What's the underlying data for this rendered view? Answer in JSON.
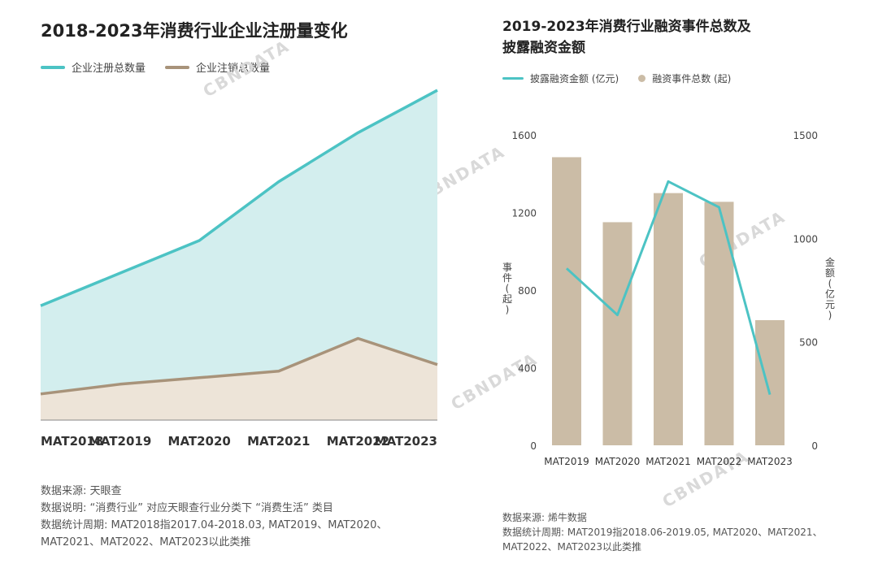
{
  "left_chart": {
    "title": "2018-2023年消费行业企业注册量变化",
    "legend": [
      {
        "name": "企业注册总数量",
        "color": "#4cc3c4"
      },
      {
        "name": "企业注销总数量",
        "color": "#a8937a"
      }
    ],
    "notes": [
      "数据来源: 天眼查",
      "数据说明: “消费行业” 对应天眼查行业分类下 “消费生活” 类目",
      "数据统计周期: MAT2018指2017.04-2018.03, MAT2019、MAT2020、",
      "MAT2021、MAT2022、MAT2023以此类推"
    ]
  },
  "right_chart": {
    "title_line1": "2019-2023年消费行业融资事件总数及",
    "title_line2": "披露融资金额",
    "legend": [
      {
        "name": "披露融资金额 (亿元)",
        "color": "#4cc3c4"
      },
      {
        "name": "融资事件总数 (起)",
        "color": "#cbbca6"
      }
    ],
    "left_axis_label": "事件 (起)",
    "right_axis_label": "金额 (亿元)",
    "notes": [
      "数据来源: 烯牛数据",
      "数据统计周期: MAT2019指2018.06-2019.05, MAT2020、MAT2021、",
      "MAT2022、MAT2023以此类推"
    ]
  },
  "watermark": "CBNDATA",
  "chart_data": [
    {
      "type": "area",
      "title": "2018-2023年消费行业企业注册量变化",
      "categories": [
        "MAT2018",
        "MAT2019",
        "MAT2020",
        "MAT2021",
        "MAT2022",
        "MAT2023"
      ],
      "series": [
        {
          "name": "企业注册总数量",
          "values": [
            35,
            45,
            55,
            73,
            88,
            101
          ]
        },
        {
          "name": "企业注销总数量",
          "values": [
            8,
            11,
            13,
            15,
            25,
            17
          ]
        }
      ],
      "ylim": [
        0,
        105
      ],
      "grid": false
    },
    {
      "type": "bar",
      "title": "2019-2023年消费行业融资事件总数及披露融资金额",
      "categories": [
        "MAT2019",
        "MAT2020",
        "MAT2021",
        "MAT2022",
        "MAT2023"
      ],
      "series": [
        {
          "name": "融资事件总数 (起)",
          "type": "bar",
          "axis": "left",
          "values": [
            1485,
            1150,
            1300,
            1255,
            645
          ]
        },
        {
          "name": "披露融资金额 (亿元)",
          "type": "line",
          "axis": "right",
          "values": [
            855,
            630,
            1275,
            1150,
            245
          ]
        }
      ],
      "y_left": {
        "ylim": [
          0,
          1600
        ],
        "ticks": [
          "0",
          "400",
          "800",
          "1200",
          "1600"
        ]
      },
      "y_right": {
        "ylim": [
          0,
          1500
        ],
        "ticks": [
          "0",
          "500",
          "1000",
          "1500"
        ]
      },
      "grid": false
    }
  ]
}
